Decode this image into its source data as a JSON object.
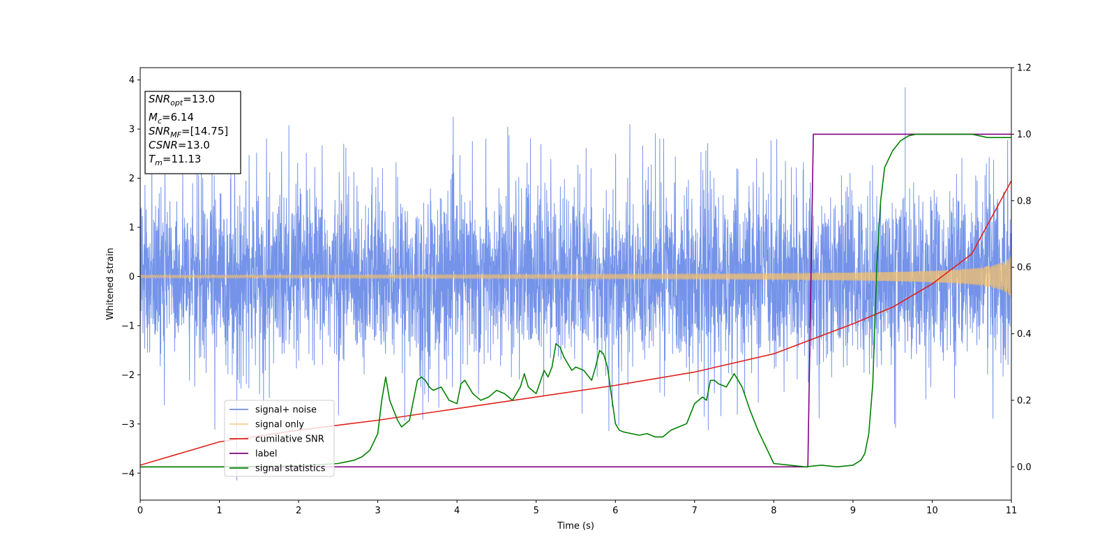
{
  "chart_data": {
    "type": "line",
    "xlabel": "Time (s)",
    "ylabel": "Whitened strain",
    "xlim": [
      0,
      11
    ],
    "ylim_left": [
      -4.55,
      4.25
    ],
    "ylim_right": [
      -0.1,
      1.2
    ],
    "xticks": [
      "0",
      "1",
      "2",
      "3",
      "4",
      "5",
      "6",
      "7",
      "8",
      "9",
      "10",
      "11"
    ],
    "yticks_left": [
      "−4",
      "−3",
      "−2",
      "−1",
      "0",
      "1",
      "2",
      "3",
      "4"
    ],
    "yticks_right": [
      "0.0",
      "0.2",
      "0.4",
      "0.6",
      "0.8",
      "1.0",
      "1.2"
    ],
    "grid": false,
    "legend_position": "lower-left",
    "annotation": {
      "lines": [
        {
          "sym": "SNR",
          "sub": "opt",
          "val": "=13.0"
        },
        {
          "sym": "M",
          "sub": "c",
          "val": "=6.14"
        },
        {
          "sym": "SNR",
          "sub": "MF",
          "val": "=[14.75]"
        },
        {
          "sym": "CSNR",
          "sub": "",
          "val": "=13.0"
        },
        {
          "sym": "T",
          "sub": "m",
          "val": "=11.13"
        }
      ]
    },
    "series": [
      {
        "name": "signal+ noise",
        "axis": "left",
        "color": "#6d8de8",
        "style": "noise",
        "noise_sigma": 0.85,
        "spike_max": 3.85,
        "spike_min": -4.15
      },
      {
        "name": "signal only",
        "axis": "left",
        "color": "#f5c06a",
        "style": "chirp",
        "amplitude_start": 0.03,
        "amplitude_end": 0.55,
        "merger_time": 11.13
      },
      {
        "name": "cumilative SNR",
        "axis": "right",
        "color": "#e0201a",
        "x": [
          0,
          1,
          2,
          3,
          4,
          5,
          6,
          7,
          8,
          9,
          9.5,
          10,
          10.5,
          11
        ],
        "y": [
          0.005,
          0.075,
          0.11,
          0.14,
          0.175,
          0.21,
          0.245,
          0.285,
          0.34,
          0.43,
          0.48,
          0.55,
          0.64,
          0.86
        ]
      },
      {
        "name": "label",
        "axis": "right",
        "color": "#800080",
        "x": [
          0,
          8.43,
          8.5,
          11
        ],
        "y": [
          0,
          0,
          1,
          1
        ]
      },
      {
        "name": "signal statistics",
        "axis": "right",
        "color": "#008000",
        "x": [
          0,
          1,
          2,
          2.5,
          2.6,
          2.7,
          2.8,
          2.9,
          3.0,
          3.05,
          3.1,
          3.15,
          3.25,
          3.3,
          3.4,
          3.5,
          3.55,
          3.6,
          3.65,
          3.7,
          3.8,
          3.9,
          4.0,
          4.05,
          4.1,
          4.15,
          4.2,
          4.25,
          4.3,
          4.4,
          4.5,
          4.6,
          4.7,
          4.8,
          4.85,
          4.9,
          5.0,
          5.1,
          5.15,
          5.2,
          5.25,
          5.3,
          5.35,
          5.4,
          5.45,
          5.5,
          5.6,
          5.7,
          5.75,
          5.8,
          5.85,
          5.9,
          6.0,
          6.05,
          6.1,
          6.2,
          6.3,
          6.4,
          6.5,
          6.6,
          6.7,
          6.8,
          6.9,
          7.0,
          7.1,
          7.15,
          7.2,
          7.25,
          7.3,
          7.4,
          7.5,
          7.6,
          7.7,
          7.8,
          7.9,
          8.0,
          8.2,
          8.4,
          8.6,
          8.8,
          9.0,
          9.1,
          9.15,
          9.2,
          9.25,
          9.3,
          9.35,
          9.4,
          9.5,
          9.6,
          9.7,
          9.8,
          10.0,
          10.5,
          10.7,
          10.8,
          11.0
        ],
        "y": [
          0.0,
          0.0,
          0.003,
          0.01,
          0.015,
          0.02,
          0.03,
          0.05,
          0.1,
          0.2,
          0.27,
          0.2,
          0.14,
          0.12,
          0.14,
          0.26,
          0.27,
          0.26,
          0.24,
          0.23,
          0.24,
          0.2,
          0.19,
          0.25,
          0.26,
          0.24,
          0.22,
          0.21,
          0.2,
          0.21,
          0.23,
          0.22,
          0.2,
          0.24,
          0.28,
          0.24,
          0.22,
          0.29,
          0.27,
          0.3,
          0.37,
          0.36,
          0.33,
          0.31,
          0.29,
          0.3,
          0.29,
          0.26,
          0.3,
          0.35,
          0.34,
          0.3,
          0.13,
          0.11,
          0.105,
          0.1,
          0.095,
          0.1,
          0.09,
          0.09,
          0.11,
          0.12,
          0.13,
          0.19,
          0.21,
          0.2,
          0.26,
          0.26,
          0.25,
          0.24,
          0.28,
          0.24,
          0.17,
          0.11,
          0.06,
          0.01,
          0.005,
          0.0,
          0.005,
          0.0,
          0.005,
          0.02,
          0.04,
          0.1,
          0.25,
          0.6,
          0.8,
          0.9,
          0.95,
          0.98,
          0.995,
          1.0,
          1.0,
          1.0,
          0.99,
          0.99,
          0.99
        ]
      }
    ]
  }
}
